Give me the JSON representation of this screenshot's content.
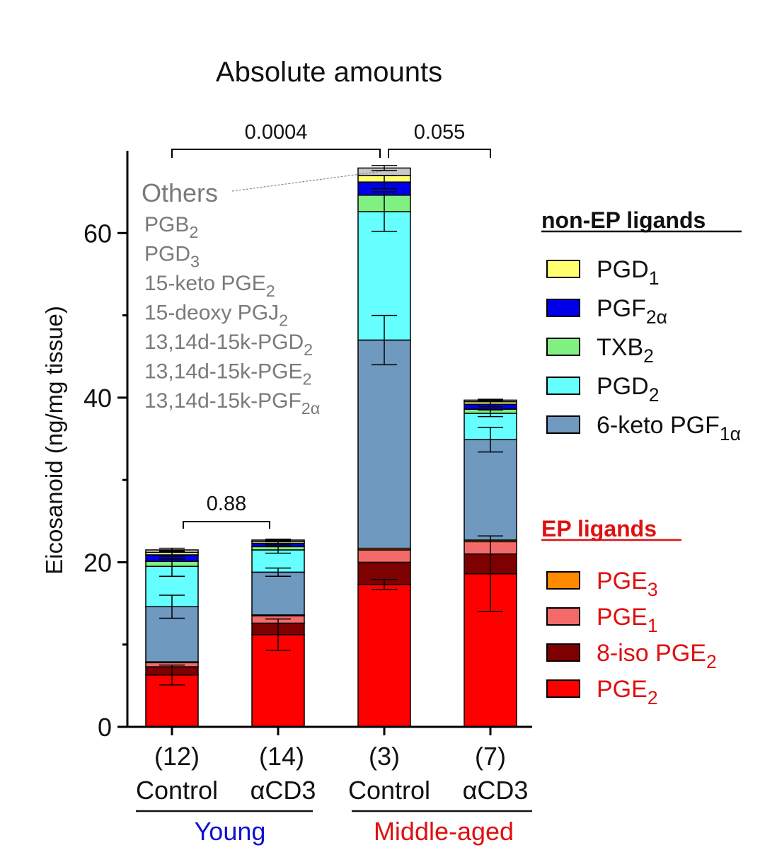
{
  "chart_data": {
    "type": "bar",
    "stacked": true,
    "title": "Absolute amounts",
    "ylabel": "Eicosanoid (ng/mg tissue)",
    "ylim": [
      0,
      70
    ],
    "yticks_major": [
      0,
      20,
      40,
      60
    ],
    "yticks_minor": [
      10,
      30,
      50
    ],
    "categories": [
      {
        "n": "(12)",
        "label": "Control",
        "group": "Young"
      },
      {
        "n": "(14)",
        "label": "αCD3",
        "group": "Young"
      },
      {
        "n": "(3)",
        "label": "Control",
        "group": "Middle-aged"
      },
      {
        "n": "(7)",
        "label": "αCD3",
        "group": "Middle-aged"
      }
    ],
    "groups": [
      {
        "name": "Young",
        "color": "#1010d0"
      },
      {
        "name": "Middle-aged",
        "color": "#e01010"
      }
    ],
    "series": [
      {
        "name": "PGE2",
        "color": "#ff0000",
        "values": [
          6.3,
          11.2,
          17.3,
          18.6
        ],
        "err": [
          1.2,
          1.9,
          0.6,
          4.6
        ]
      },
      {
        "name": "8-iso PGE2",
        "color": "#7f0000",
        "values": [
          1.0,
          1.4,
          2.7,
          2.4
        ],
        "err": [
          0,
          0,
          0,
          0
        ]
      },
      {
        "name": "PGE1",
        "color": "#f46a6a",
        "values": [
          0.5,
          0.9,
          1.5,
          1.5
        ],
        "err": [
          0,
          0,
          0,
          0
        ]
      },
      {
        "name": "PGE3",
        "color": "#ff8a00",
        "values": [
          0.1,
          0.1,
          0.2,
          0.2
        ],
        "err": [
          0,
          0,
          0,
          0
        ]
      },
      {
        "name": "6-keto PGF1α",
        "color": "#7099c0",
        "values": [
          6.7,
          5.2,
          25.3,
          12.2
        ],
        "err": [
          1.4,
          0.5,
          3.0,
          1.5
        ]
      },
      {
        "name": "PGD2",
        "color": "#66ffff",
        "values": [
          4.9,
          2.7,
          15.6,
          3.2
        ],
        "err": [
          1.2,
          0.4,
          2.4,
          0.4
        ]
      },
      {
        "name": "TXB2",
        "color": "#80f080",
        "values": [
          0.6,
          0.4,
          2.0,
          0.5
        ],
        "err": [
          0,
          0,
          0,
          0
        ]
      },
      {
        "name": "PGF2α",
        "color": "#0000e8",
        "values": [
          0.8,
          0.4,
          1.6,
          0.6
        ],
        "err": [
          0.5,
          0.2,
          0.8,
          0.3
        ]
      },
      {
        "name": "PGD1",
        "color": "#ffff70",
        "values": [
          0.3,
          0.2,
          0.8,
          0.3
        ],
        "err": [
          0,
          0,
          0,
          0
        ]
      },
      {
        "name": "Others",
        "color": "#c8c8c8",
        "values": [
          0.3,
          0.2,
          0.9,
          0.2
        ],
        "err": [
          0.2,
          0.1,
          0.3,
          0.1
        ]
      }
    ],
    "comparisons": [
      {
        "from": 0,
        "to": 2,
        "p": "0.0004"
      },
      {
        "from": 2,
        "to": 3,
        "p": "0.055"
      },
      {
        "from": 0,
        "to": 1,
        "p": "0.88"
      }
    ],
    "others_annotation": {
      "title": "Others",
      "items": [
        {
          "base": "PGB",
          "sub": "2"
        },
        {
          "base": "PGD",
          "sub": "3"
        },
        {
          "base": "15-keto PGE",
          "sub": "2"
        },
        {
          "base": "15-deoxy PGJ",
          "sub": "2"
        },
        {
          "base": "13,14d-15k-PGD",
          "sub": "2"
        },
        {
          "base": "13,14d-15k-PGE",
          "sub": "2"
        },
        {
          "base": "13,14d-15k-PGF",
          "sub": "2α"
        }
      ]
    },
    "legend": [
      {
        "title": "non-EP ligands",
        "title_color": "#111111",
        "text_color": "#111111",
        "items": [
          {
            "base": "PGD",
            "sub": "1",
            "color": "#ffff70"
          },
          {
            "base": "PGF",
            "sub": "2α",
            "color": "#0000e8"
          },
          {
            "base": "TXB",
            "sub": "2",
            "color": "#80f080"
          },
          {
            "base": "PGD",
            "sub": "2",
            "color": "#66ffff"
          },
          {
            "base": "6-keto PGF",
            "sub": "1α",
            "color": "#7099c0"
          }
        ]
      },
      {
        "title": "EP ligands",
        "title_color": "#e01010",
        "text_color": "#e01010",
        "items": [
          {
            "base": "PGE",
            "sub": "3",
            "color": "#ff8a00"
          },
          {
            "base": "PGE",
            "sub": "1",
            "color": "#f46a6a"
          },
          {
            "base": "8-iso PGE",
            "sub": "2",
            "color": "#7f0000"
          },
          {
            "base": "PGE",
            "sub": "2",
            "color": "#ff0000"
          }
        ]
      }
    ]
  }
}
